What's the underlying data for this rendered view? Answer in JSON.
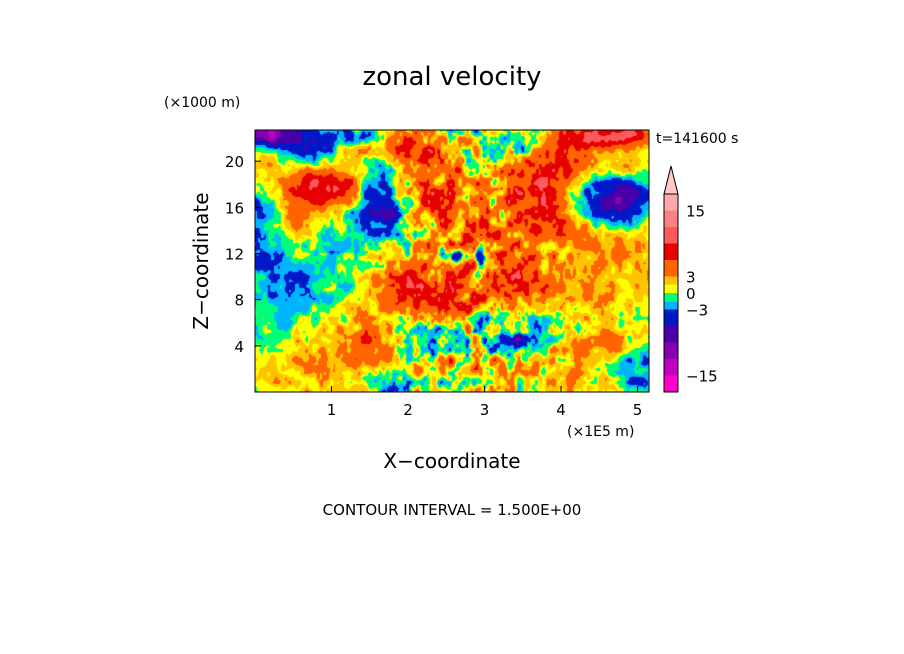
{
  "chart_data": {
    "type": "heatmap",
    "title": "zonal velocity",
    "xlabel": "X−coordinate",
    "ylabel": "Z−coordinate",
    "x_multiplier": "(×1E5 m)",
    "y_multiplier": "(×1000 m)",
    "xlim": [
      0,
      5.15
    ],
    "ylim": [
      0,
      22.7
    ],
    "x_ticks": [
      "1",
      "2",
      "3",
      "4",
      "5"
    ],
    "x_tick_values": [
      1,
      2,
      3,
      4,
      5
    ],
    "y_ticks": [
      "4",
      "8",
      "12",
      "16",
      "20"
    ],
    "y_tick_values": [
      4,
      8,
      12,
      16,
      20
    ],
    "time_label": "t=141600 s",
    "footer": "CONTOUR INTERVAL = 1.500E+00",
    "contour_interval": 1.5,
    "colorbar": {
      "ticks": [
        "15",
        "3",
        "0",
        "−3",
        "−15"
      ],
      "tick_values": [
        15,
        3,
        0,
        -3,
        -15
      ],
      "levels": [
        {
          "min": -18,
          "max": -15,
          "color": "#ff00c8"
        },
        {
          "min": -15,
          "max": -12,
          "color": "#c000c0"
        },
        {
          "min": -12,
          "max": -9,
          "color": "#8a00b0"
        },
        {
          "min": -9,
          "max": -6,
          "color": "#4a00a8"
        },
        {
          "min": -6,
          "max": -3,
          "color": "#0018c8"
        },
        {
          "min": -3,
          "max": -1.5,
          "color": "#00b4ff"
        },
        {
          "min": -1.5,
          "max": 0,
          "color": "#00ff78"
        },
        {
          "min": 0,
          "max": 1.5,
          "color": "#ffff00"
        },
        {
          "min": 1.5,
          "max": 3,
          "color": "#ffc400"
        },
        {
          "min": 3,
          "max": 6,
          "color": "#ff6400"
        },
        {
          "min": 6,
          "max": 9,
          "color": "#e60000"
        },
        {
          "min": 9,
          "max": 12,
          "color": "#ff5a5a"
        },
        {
          "min": 12,
          "max": 15,
          "color": "#ff8282"
        },
        {
          "min": 15,
          "max": 18,
          "color": "#ffaaaa"
        },
        {
          "min": 18,
          "max": 21,
          "color": "#ffc8c8"
        }
      ]
    },
    "field_features": {
      "background": 0.6,
      "blobs": [
        {
          "x": 0.1,
          "z": 20.5,
          "sx": 0.35,
          "sz": 2.0,
          "a": 7
        },
        {
          "x": 0.55,
          "z": 21.2,
          "sx": 0.45,
          "sz": 1.6,
          "a": -8
        },
        {
          "x": 0.15,
          "z": 22.5,
          "sx": 0.2,
          "sz": 0.8,
          "a": -12
        },
        {
          "x": 1.0,
          "z": 17.8,
          "sx": 0.4,
          "sz": 1.2,
          "a": 8
        },
        {
          "x": 0.1,
          "z": 15.0,
          "sx": 0.25,
          "sz": 2.4,
          "a": -8
        },
        {
          "x": 0.4,
          "z": 14.5,
          "sx": 0.3,
          "sz": 1.5,
          "a": 4
        },
        {
          "x": 0.35,
          "z": 9.5,
          "sx": 0.45,
          "sz": 2.8,
          "a": -2.6
        },
        {
          "x": 1.55,
          "z": 17.5,
          "sx": 0.2,
          "sz": 2.0,
          "a": -7
        },
        {
          "x": 1.85,
          "z": 15.0,
          "sx": 0.25,
          "sz": 1.3,
          "a": -3
        },
        {
          "x": 1.8,
          "z": 21.5,
          "sx": 0.4,
          "sz": 1.2,
          "a": 6
        },
        {
          "x": 1.45,
          "z": 22.3,
          "sx": 0.35,
          "sz": 0.7,
          "a": -6
        },
        {
          "x": 2.3,
          "z": 17.0,
          "sx": 0.35,
          "sz": 2.0,
          "a": 6
        },
        {
          "x": 2.5,
          "z": 20.8,
          "sx": 0.3,
          "sz": 1.6,
          "a": 4
        },
        {
          "x": 2.6,
          "z": 11.8,
          "sx": 0.08,
          "sz": 0.5,
          "a": -8
        },
        {
          "x": 2.95,
          "z": 11.5,
          "sx": 0.05,
          "sz": 1.1,
          "a": -9
        },
        {
          "x": 2.0,
          "z": 9.3,
          "sx": 0.35,
          "sz": 1.2,
          "a": 5
        },
        {
          "x": 3.3,
          "z": 10.5,
          "sx": 0.45,
          "sz": 2.4,
          "a": 5
        },
        {
          "x": 2.6,
          "z": 7.5,
          "sx": 0.4,
          "sz": 1.5,
          "a": 4
        },
        {
          "x": 3.2,
          "z": 6.5,
          "sx": 0.35,
          "sz": 1.0,
          "a": -3
        },
        {
          "x": 1.55,
          "z": 4.0,
          "sx": 0.35,
          "sz": 1.6,
          "a": 4
        },
        {
          "x": 2.05,
          "z": 4.0,
          "sx": 0.3,
          "sz": 1.2,
          "a": -3
        },
        {
          "x": 1.7,
          "z": 1.2,
          "sx": 0.2,
          "sz": 1.3,
          "a": -3
        },
        {
          "x": 2.5,
          "z": 2.2,
          "sx": 0.4,
          "sz": 1.0,
          "a": 3.5
        },
        {
          "x": 0.4,
          "z": 3.5,
          "sx": 0.5,
          "sz": 1.4,
          "a": 1.5
        },
        {
          "x": 3.35,
          "z": 4.2,
          "sx": 0.2,
          "sz": 0.7,
          "a": -6
        },
        {
          "x": 3.7,
          "z": 17.5,
          "sx": 0.3,
          "sz": 2.0,
          "a": 6
        },
        {
          "x": 3.55,
          "z": 21.0,
          "sx": 0.35,
          "sz": 1.2,
          "a": -3
        },
        {
          "x": 4.05,
          "z": 14.5,
          "sx": 0.3,
          "sz": 1.3,
          "a": 5
        },
        {
          "x": 4.05,
          "z": 20.0,
          "sx": 0.3,
          "sz": 1.2,
          "a": 5
        },
        {
          "x": 4.75,
          "z": 16.8,
          "sx": 0.35,
          "sz": 1.5,
          "a": -7
        },
        {
          "x": 4.35,
          "z": 22.0,
          "sx": 0.35,
          "sz": 0.7,
          "a": 4
        },
        {
          "x": 4.9,
          "z": 22.3,
          "sx": 0.3,
          "sz": 0.7,
          "a": 9
        },
        {
          "x": 4.85,
          "z": 19.5,
          "sx": 0.25,
          "sz": 1.2,
          "a": 4
        },
        {
          "x": 4.6,
          "z": 12.5,
          "sx": 0.3,
          "sz": 1.2,
          "a": 2.5
        },
        {
          "x": 4.0,
          "z": 9.0,
          "sx": 0.45,
          "sz": 2.0,
          "a": 2.5
        },
        {
          "x": 3.95,
          "z": 6.0,
          "sx": 0.3,
          "sz": 1.0,
          "a": -2.5
        },
        {
          "x": 5.0,
          "z": 2.0,
          "sx": 0.25,
          "sz": 1.6,
          "a": -3
        },
        {
          "x": 4.6,
          "z": 4.0,
          "sx": 0.3,
          "sz": 1.0,
          "a": 3
        },
        {
          "x": 0.9,
          "z": 1.5,
          "sx": 0.45,
          "sz": 1.2,
          "a": 1.0
        },
        {
          "x": 4.3,
          "z": 1.0,
          "sx": 0.4,
          "sz": 1.0,
          "a": 2.0
        }
      ]
    }
  }
}
